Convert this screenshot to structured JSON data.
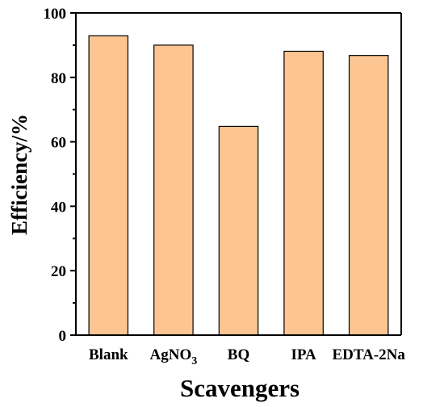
{
  "chart_data": {
    "type": "bar",
    "categories": [
      "Blank",
      "AgNO3",
      "BQ",
      "IPA",
      "EDTA-2Na"
    ],
    "category_labels": [
      {
        "main": "Blank",
        "sub": ""
      },
      {
        "main": "AgNO",
        "sub": "3"
      },
      {
        "main": "BQ",
        "sub": ""
      },
      {
        "main": "IPA",
        "sub": ""
      },
      {
        "main": "EDTA-2Na",
        "sub": ""
      }
    ],
    "values": [
      92.9,
      90.0,
      64.8,
      88.1,
      86.8
    ],
    "xlabel": "Scavengers",
    "ylabel": "Efficiency/%",
    "ylim": [
      0,
      100
    ],
    "yticks": [
      0,
      20,
      40,
      60,
      80,
      100
    ],
    "grid": false,
    "colors": {
      "bar_fill": "#FDC592",
      "bar_stroke": "#000000"
    }
  }
}
